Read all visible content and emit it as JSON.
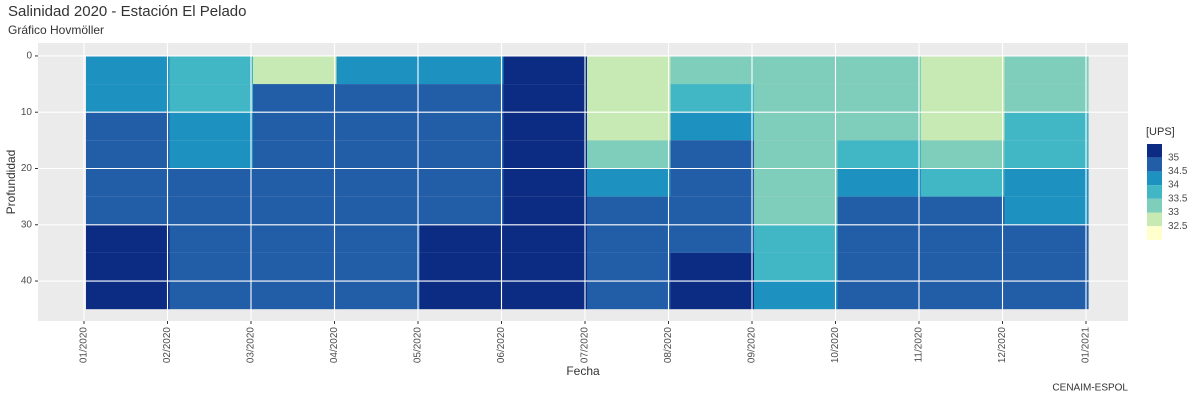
{
  "chart_data": {
    "type": "hovmoller",
    "title": "Salinidad 2020 - Estación El Pelado",
    "subtitle": "Gráfico Hovmöller",
    "x_label": "Fecha",
    "y_label": "Profundidad",
    "caption": "CENAIM-ESPOL",
    "legend_title": "[UPS]",
    "xticks": [
      "01/2020",
      "02/2020",
      "03/2020",
      "04/2020",
      "05/2020",
      "06/2020",
      "07/2020",
      "08/2020",
      "09/2020",
      "10/2020",
      "11/2020",
      "12/2020",
      "01/2021"
    ],
    "depths": [
      0,
      5,
      10,
      15,
      20,
      25,
      30,
      35,
      40
    ],
    "depth_step": 5,
    "ylim": [
      -2.3,
      47.1
    ],
    "yticks": [
      0,
      10,
      20,
      30,
      40
    ],
    "levels": [
      32.5,
      33.0,
      33.5,
      34.0,
      34.5,
      35.0
    ],
    "colors": [
      "#ffffcc",
      "#c7e9b4",
      "#7fcdbb",
      "#41b6c4",
      "#1d91c0",
      "#225ea8",
      "#0c2c84"
    ],
    "values": [
      [
        34.2,
        34.3,
        34.5,
        34.6,
        34.8,
        34.9,
        35.1,
        35.1,
        35.1
      ],
      [
        33.6,
        33.8,
        34.0,
        34.2,
        34.5,
        34.6,
        34.8,
        34.8,
        34.8
      ],
      [
        32.9,
        34.5,
        34.6,
        34.7,
        34.7,
        34.8,
        34.9,
        34.9,
        34.9
      ],
      [
        34.3,
        34.6,
        34.7,
        34.7,
        34.8,
        34.8,
        34.8,
        34.9,
        34.9
      ],
      [
        34.3,
        34.6,
        34.7,
        34.8,
        34.9,
        34.9,
        35.1,
        35.1,
        35.1
      ],
      [
        35.2,
        35.2,
        35.2,
        35.2,
        35.2,
        35.2,
        35.2,
        35.2,
        35.2
      ],
      [
        32.8,
        32.8,
        32.9,
        33.2,
        34.1,
        34.6,
        34.8,
        34.9,
        34.9
      ],
      [
        33.2,
        33.5,
        34.0,
        34.5,
        34.6,
        34.7,
        34.8,
        35.1,
        35.1
      ],
      [
        33.0,
        33.0,
        33.1,
        33.2,
        33.3,
        33.4,
        33.6,
        33.9,
        34.2
      ],
      [
        33.0,
        33.1,
        33.3,
        33.6,
        34.3,
        34.6,
        34.7,
        34.7,
        34.7
      ],
      [
        32.6,
        32.7,
        32.9,
        33.2,
        33.9,
        34.6,
        34.7,
        34.8,
        34.8
      ],
      [
        33.3,
        33.4,
        33.6,
        33.9,
        34.2,
        34.4,
        34.6,
        34.8,
        34.9
      ]
    ]
  }
}
